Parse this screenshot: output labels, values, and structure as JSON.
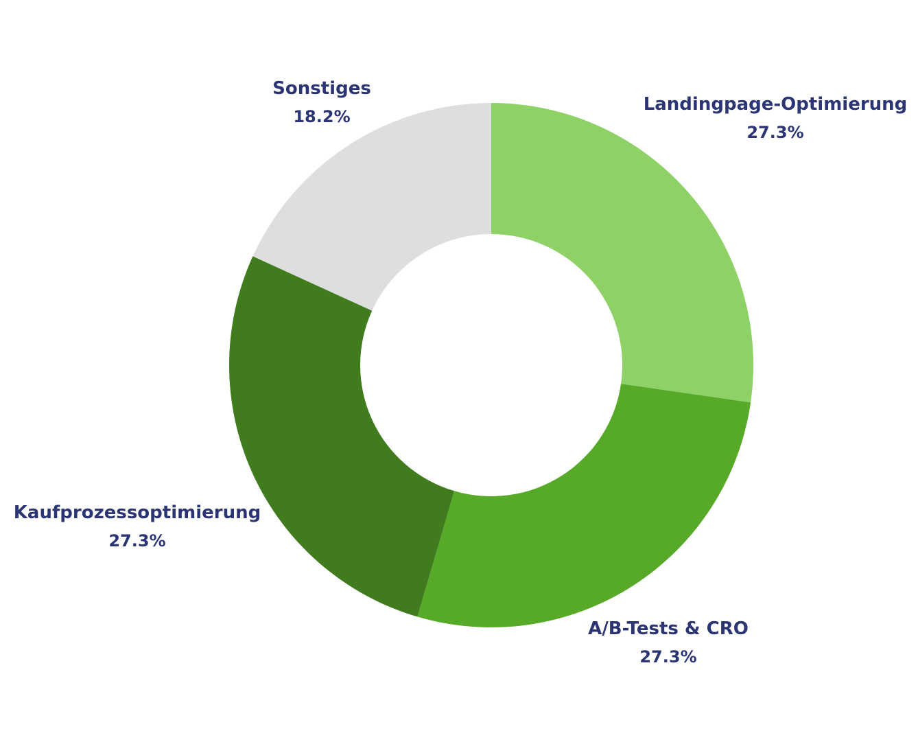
{
  "chart_data": {
    "type": "pie",
    "donut": true,
    "categories": [
      "Landingpage-Optimierung",
      "A/B-Tests & CRO",
      "Kaufprozessoptimierung",
      "Sonstiges"
    ],
    "values": [
      27.3,
      27.3,
      27.3,
      18.2
    ],
    "value_labels": [
      "27.3%",
      "27.3%",
      "27.3%",
      "18.2%"
    ],
    "colors": [
      "#8ed166",
      "#57aa28",
      "#407c1e",
      "#dedede"
    ],
    "label_color": "#2b3574",
    "title": "",
    "legend": "none"
  }
}
